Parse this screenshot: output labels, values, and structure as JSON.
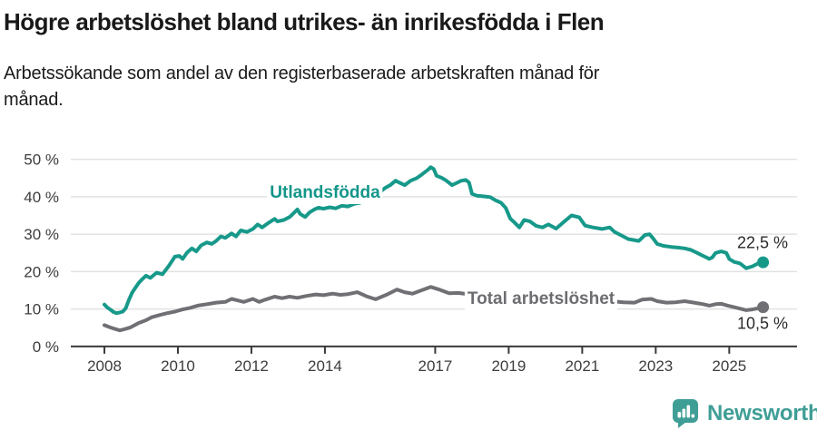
{
  "header": {
    "title": "Högre arbetslöshet bland utrikes- än inrikesfödda i Flen",
    "subtitle_line1": "Arbetssökande som andel av den registerbaserade arbetskraften månad för",
    "subtitle_line2": "månad."
  },
  "footer": {
    "brand": "Newsworthy",
    "brand_color": "#3f9e96"
  },
  "chart_data": {
    "type": "line",
    "title": "Högre arbetslöshet bland utrikes- än inrikesfödda i Flen",
    "subtitle": "Arbetssökande som andel av den registerbaserade arbetskraften månad för månad.",
    "grid": "horizontal",
    "legend_position": "inline-labels",
    "x_ticks": [
      "2008",
      "2010",
      "2012",
      "2014",
      "2017",
      "2019",
      "2021",
      "2023",
      "2025"
    ],
    "x_tick_years": [
      2008,
      2010,
      2012,
      2014,
      2017,
      2019,
      2021,
      2023,
      2025
    ],
    "y_ticks": [
      "0 %",
      "10 %",
      "20 %",
      "30 %",
      "40 %",
      "50 %"
    ],
    "y_tick_values": [
      0,
      10,
      20,
      30,
      40,
      50
    ],
    "ylim": [
      0,
      50
    ],
    "xlim": [
      2007.9,
      2026.3
    ],
    "axis_color": "#3a3a3a",
    "gridline_color": "#e2e2e2",
    "series": [
      {
        "name": "Utlandsfödda",
        "color": "#17998a",
        "label_color": "#13968a",
        "end_label": "22,5 %",
        "end_value": 22.5,
        "points": [
          [
            2008.0,
            11.2
          ],
          [
            2008.08,
            10.4
          ],
          [
            2008.17,
            9.8
          ],
          [
            2008.25,
            9.2
          ],
          [
            2008.33,
            8.9
          ],
          [
            2008.42,
            9.1
          ],
          [
            2008.5,
            9.3
          ],
          [
            2008.58,
            10.2
          ],
          [
            2008.67,
            12.5
          ],
          [
            2008.75,
            14.3
          ],
          [
            2008.83,
            15.5
          ],
          [
            2008.92,
            16.8
          ],
          [
            2009.0,
            17.7
          ],
          [
            2009.13,
            18.9
          ],
          [
            2009.25,
            18.3
          ],
          [
            2009.42,
            19.7
          ],
          [
            2009.58,
            19.3
          ],
          [
            2009.75,
            21.5
          ],
          [
            2009.92,
            24.0
          ],
          [
            2010.04,
            24.2
          ],
          [
            2010.13,
            23.4
          ],
          [
            2010.25,
            25.1
          ],
          [
            2010.38,
            26.2
          ],
          [
            2010.5,
            25.4
          ],
          [
            2010.63,
            27.0
          ],
          [
            2010.79,
            27.8
          ],
          [
            2010.92,
            27.4
          ],
          [
            2011.04,
            28.2
          ],
          [
            2011.17,
            29.4
          ],
          [
            2011.29,
            29.0
          ],
          [
            2011.46,
            30.2
          ],
          [
            2011.58,
            29.4
          ],
          [
            2011.71,
            31.0
          ],
          [
            2011.88,
            30.6
          ],
          [
            2012.04,
            31.4
          ],
          [
            2012.17,
            32.6
          ],
          [
            2012.29,
            31.8
          ],
          [
            2012.46,
            33.0
          ],
          [
            2012.63,
            34.1
          ],
          [
            2012.71,
            33.4
          ],
          [
            2012.88,
            33.8
          ],
          [
            2013.04,
            34.6
          ],
          [
            2013.17,
            35.8
          ],
          [
            2013.25,
            36.6
          ],
          [
            2013.33,
            35.4
          ],
          [
            2013.46,
            34.6
          ],
          [
            2013.58,
            35.8
          ],
          [
            2013.71,
            36.6
          ],
          [
            2013.83,
            37.1
          ],
          [
            2013.96,
            36.8
          ],
          [
            2014.13,
            37.2
          ],
          [
            2014.29,
            36.9
          ],
          [
            2014.46,
            37.6
          ],
          [
            2014.63,
            37.4
          ],
          [
            2014.79,
            38.1
          ],
          [
            2014.96,
            38.4
          ],
          [
            2015.13,
            38.9
          ],
          [
            2015.29,
            39.6
          ],
          [
            2015.46,
            41.0
          ],
          [
            2015.63,
            42.3
          ],
          [
            2015.79,
            43.2
          ],
          [
            2015.92,
            44.3
          ],
          [
            2016.0,
            43.9
          ],
          [
            2016.17,
            43.1
          ],
          [
            2016.33,
            44.3
          ],
          [
            2016.5,
            45.0
          ],
          [
            2016.63,
            45.9
          ],
          [
            2016.79,
            47.1
          ],
          [
            2016.88,
            47.9
          ],
          [
            2016.96,
            47.4
          ],
          [
            2017.04,
            45.6
          ],
          [
            2017.17,
            45.1
          ],
          [
            2017.29,
            44.4
          ],
          [
            2017.46,
            43.1
          ],
          [
            2017.54,
            43.5
          ],
          [
            2017.71,
            44.3
          ],
          [
            2017.83,
            44.5
          ],
          [
            2017.92,
            43.8
          ],
          [
            2018.0,
            40.8
          ],
          [
            2018.13,
            40.3
          ],
          [
            2018.33,
            40.1
          ],
          [
            2018.5,
            39.9
          ],
          [
            2018.63,
            39.1
          ],
          [
            2018.79,
            38.4
          ],
          [
            2018.92,
            37.0
          ],
          [
            2019.04,
            34.2
          ],
          [
            2019.17,
            33.0
          ],
          [
            2019.29,
            31.8
          ],
          [
            2019.42,
            33.8
          ],
          [
            2019.58,
            33.4
          ],
          [
            2019.75,
            32.2
          ],
          [
            2019.92,
            31.8
          ],
          [
            2020.08,
            32.6
          ],
          [
            2020.29,
            31.5
          ],
          [
            2020.5,
            33.3
          ],
          [
            2020.71,
            35.0
          ],
          [
            2020.92,
            34.5
          ],
          [
            2021.08,
            32.3
          ],
          [
            2021.29,
            31.8
          ],
          [
            2021.54,
            31.4
          ],
          [
            2021.75,
            31.8
          ],
          [
            2021.88,
            30.6
          ],
          [
            2022.04,
            29.8
          ],
          [
            2022.25,
            28.7
          ],
          [
            2022.54,
            28.2
          ],
          [
            2022.71,
            29.8
          ],
          [
            2022.83,
            30.0
          ],
          [
            2022.92,
            29.0
          ],
          [
            2023.04,
            27.4
          ],
          [
            2023.21,
            26.9
          ],
          [
            2023.42,
            26.6
          ],
          [
            2023.63,
            26.4
          ],
          [
            2023.79,
            26.2
          ],
          [
            2023.96,
            25.8
          ],
          [
            2024.13,
            25.0
          ],
          [
            2024.29,
            24.2
          ],
          [
            2024.46,
            23.4
          ],
          [
            2024.54,
            23.8
          ],
          [
            2024.63,
            25.0
          ],
          [
            2024.79,
            25.4
          ],
          [
            2024.92,
            25.0
          ],
          [
            2025.0,
            23.4
          ],
          [
            2025.13,
            22.6
          ],
          [
            2025.29,
            22.2
          ],
          [
            2025.46,
            20.9
          ],
          [
            2025.63,
            21.4
          ],
          [
            2025.79,
            22.2
          ],
          [
            2025.92,
            22.5
          ]
        ]
      },
      {
        "name": "Total arbetslöshet",
        "color": "#707074",
        "label_color": "#6d6d71",
        "end_label": "10,5 %",
        "end_value": 10.5,
        "points": [
          [
            2008.0,
            5.7
          ],
          [
            2008.13,
            5.2
          ],
          [
            2008.25,
            4.8
          ],
          [
            2008.42,
            4.3
          ],
          [
            2008.54,
            4.6
          ],
          [
            2008.71,
            5.1
          ],
          [
            2008.92,
            6.2
          ],
          [
            2009.13,
            7.0
          ],
          [
            2009.29,
            7.8
          ],
          [
            2009.5,
            8.4
          ],
          [
            2009.71,
            8.9
          ],
          [
            2009.92,
            9.3
          ],
          [
            2010.13,
            9.9
          ],
          [
            2010.33,
            10.3
          ],
          [
            2010.54,
            10.9
          ],
          [
            2010.79,
            11.3
          ],
          [
            2011.04,
            11.7
          ],
          [
            2011.29,
            11.9
          ],
          [
            2011.46,
            12.7
          ],
          [
            2011.63,
            12.3
          ],
          [
            2011.79,
            11.9
          ],
          [
            2012.04,
            12.7
          ],
          [
            2012.21,
            11.9
          ],
          [
            2012.38,
            12.5
          ],
          [
            2012.63,
            13.3
          ],
          [
            2012.83,
            12.9
          ],
          [
            2013.04,
            13.3
          ],
          [
            2013.25,
            13.0
          ],
          [
            2013.5,
            13.5
          ],
          [
            2013.75,
            13.9
          ],
          [
            2013.96,
            13.7
          ],
          [
            2014.21,
            14.1
          ],
          [
            2014.42,
            13.8
          ],
          [
            2014.63,
            14.0
          ],
          [
            2014.88,
            14.5
          ],
          [
            2015.13,
            13.4
          ],
          [
            2015.38,
            12.6
          ],
          [
            2015.67,
            13.8
          ],
          [
            2015.96,
            15.2
          ],
          [
            2016.17,
            14.5
          ],
          [
            2016.38,
            14.1
          ],
          [
            2016.63,
            15.0
          ],
          [
            2016.88,
            15.9
          ],
          [
            2017.08,
            15.3
          ],
          [
            2017.38,
            14.2
          ],
          [
            2017.63,
            14.3
          ],
          [
            2017.88,
            14.0
          ],
          [
            2018.13,
            13.8
          ],
          [
            2018.38,
            13.6
          ],
          [
            2018.63,
            13.4
          ],
          [
            2018.88,
            13.1
          ],
          [
            2019.13,
            12.9
          ],
          [
            2019.38,
            12.8
          ],
          [
            2019.63,
            12.7
          ],
          [
            2019.88,
            12.8
          ],
          [
            2020.13,
            13.0
          ],
          [
            2020.38,
            13.2
          ],
          [
            2020.63,
            13.1
          ],
          [
            2020.88,
            12.9
          ],
          [
            2021.13,
            12.7
          ],
          [
            2021.38,
            12.4
          ],
          [
            2021.63,
            12.2
          ],
          [
            2021.88,
            12.0
          ],
          [
            2022.13,
            11.8
          ],
          [
            2022.42,
            11.7
          ],
          [
            2022.63,
            12.5
          ],
          [
            2022.88,
            12.7
          ],
          [
            2023.04,
            12.1
          ],
          [
            2023.29,
            11.7
          ],
          [
            2023.54,
            11.8
          ],
          [
            2023.79,
            12.1
          ],
          [
            2024.04,
            11.7
          ],
          [
            2024.29,
            11.3
          ],
          [
            2024.46,
            10.9
          ],
          [
            2024.63,
            11.3
          ],
          [
            2024.79,
            11.4
          ],
          [
            2024.96,
            10.9
          ],
          [
            2025.13,
            10.5
          ],
          [
            2025.29,
            10.1
          ],
          [
            2025.46,
            9.7
          ],
          [
            2025.63,
            9.9
          ],
          [
            2025.79,
            10.2
          ],
          [
            2025.92,
            10.5
          ]
        ]
      }
    ]
  }
}
